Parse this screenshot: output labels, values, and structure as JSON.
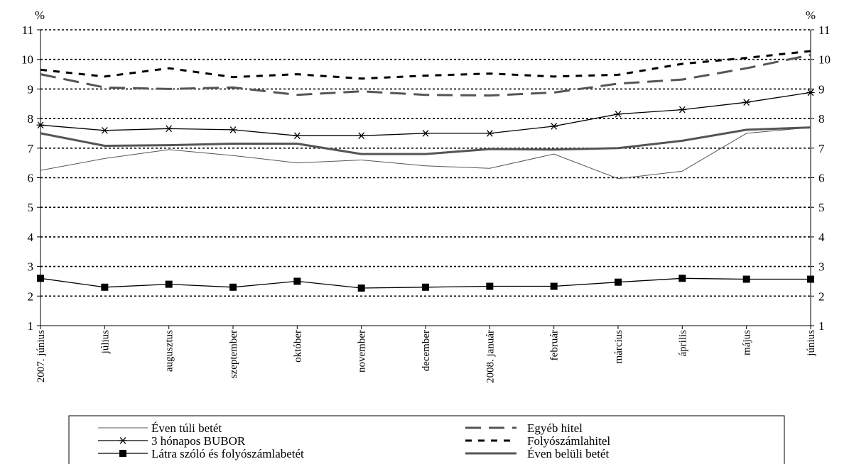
{
  "chart_data": {
    "type": "line",
    "y_unit_left": "%",
    "y_unit_right": "%",
    "ylim": [
      1,
      11
    ],
    "yticks": [
      1,
      2,
      3,
      4,
      5,
      6,
      7,
      8,
      9,
      10,
      11
    ],
    "categories": [
      "2007. június",
      "július",
      "augusztus",
      "szeptember",
      "október",
      "november",
      "december",
      "2008. január",
      "február",
      "március",
      "április",
      "május",
      "június"
    ],
    "grid": true,
    "legend_position": "bottom",
    "series": [
      {
        "name": "Éven túli betét",
        "style": "thin-solid",
        "color": "#555555",
        "values": [
          6.25,
          6.65,
          6.95,
          6.75,
          6.5,
          6.6,
          6.4,
          6.32,
          6.8,
          5.97,
          6.22,
          7.5,
          7.7
        ]
      },
      {
        "name": "Egyéb hitel",
        "style": "long-dash",
        "color": "#555555",
        "values": [
          9.5,
          9.05,
          9.0,
          9.05,
          8.8,
          8.92,
          8.8,
          8.78,
          8.88,
          9.18,
          9.32,
          9.7,
          10.15
        ]
      },
      {
        "name": "3 hónapos BUBOR",
        "style": "asterisk",
        "color": "#000000",
        "values": [
          7.78,
          7.6,
          7.66,
          7.62,
          7.42,
          7.42,
          7.5,
          7.5,
          7.74,
          8.15,
          8.3,
          8.55,
          8.88
        ]
      },
      {
        "name": "Folyószámlahitel",
        "style": "short-dash",
        "color": "#000000",
        "values": [
          9.65,
          9.42,
          9.7,
          9.4,
          9.5,
          9.35,
          9.45,
          9.52,
          9.42,
          9.48,
          9.85,
          10.05,
          10.28
        ]
      },
      {
        "name": "Látra szóló és folyószámlabetét",
        "style": "square",
        "color": "#000000",
        "values": [
          2.6,
          2.3,
          2.4,
          2.3,
          2.5,
          2.27,
          2.3,
          2.33,
          2.33,
          2.47,
          2.6,
          2.57,
          2.57
        ]
      },
      {
        "name": "Éven belüli betét",
        "style": "thick-solid",
        "color": "#555555",
        "values": [
          7.5,
          7.08,
          7.1,
          7.15,
          7.15,
          6.8,
          6.8,
          6.97,
          6.95,
          7.0,
          7.25,
          7.62,
          7.7
        ]
      }
    ]
  }
}
